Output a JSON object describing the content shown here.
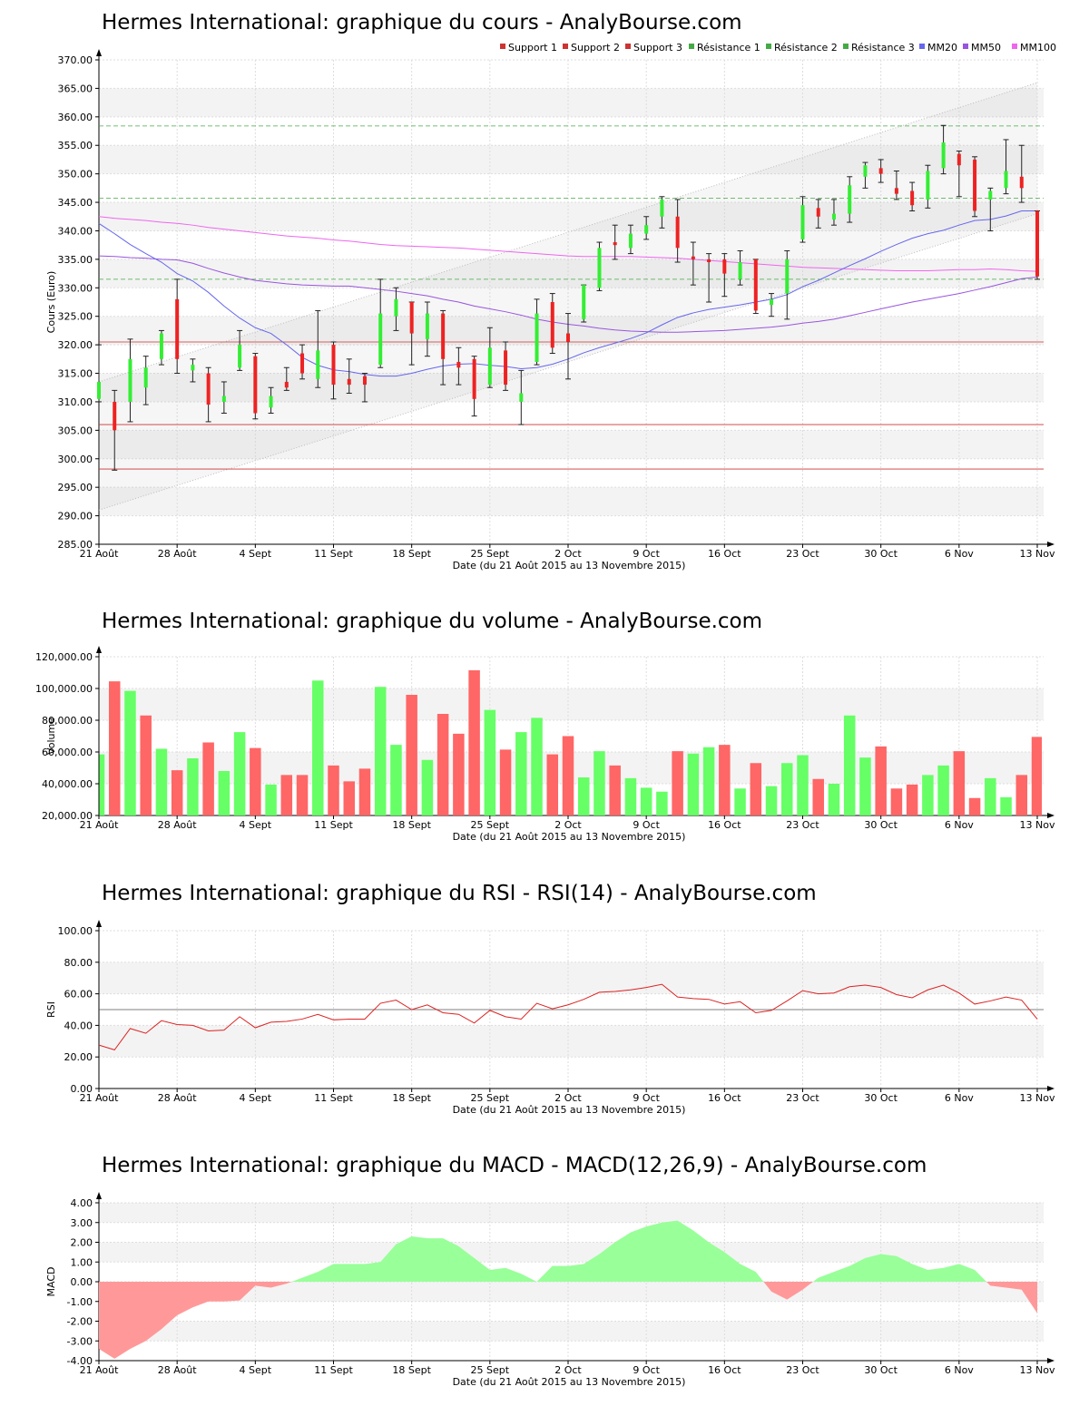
{
  "x_axis": {
    "ticks": [
      "21 Août",
      "28 Août",
      "4 Sept",
      "11 Sept",
      "18 Sept",
      "25 Sept",
      "2 Oct",
      "9 Oct",
      "16 Oct",
      "23 Oct",
      "30 Oct",
      "6 Nov",
      "13 Nov"
    ],
    "tick_positions": [
      0,
      5,
      10,
      15,
      20,
      25,
      30,
      35,
      40,
      45,
      50,
      55,
      60
    ],
    "label": "Date (du 21 Août 2015 au 13 Novembre 2015)"
  },
  "colors": {
    "up": "#33ee33",
    "down": "#ee2222",
    "vol_up": "#66ff66",
    "vol_down": "#ff6666",
    "mm20": "#6666ee",
    "mm50": "#9955dd",
    "mm100": "#ee66ee",
    "support": "#cc3333",
    "resistance": "#44aa44",
    "macd_pos": "#99ff99",
    "macd_neg": "#ff9999"
  },
  "chart_data": [
    {
      "type": "candlestick",
      "title": "Hermes International: graphique du cours - AnalyBourse.com",
      "ylabel": "Cours (Euro)",
      "ylim": [
        285,
        370
      ],
      "yticks": [
        "285.00",
        "290.00",
        "295.00",
        "300.00",
        "305.00",
        "310.00",
        "315.00",
        "320.00",
        "325.00",
        "330.00",
        "335.00",
        "340.00",
        "345.00",
        "350.00",
        "355.00",
        "360.00",
        "365.00",
        "370.00"
      ],
      "legend": [
        "Support 1",
        "Support 2",
        "Support 3",
        "Résistance 1",
        "Résistance 2",
        "Résistance 3",
        "MM20",
        "MM50",
        "MM100"
      ],
      "levels": {
        "support": [
          320.5,
          306.0,
          298.2
        ],
        "resistance": [
          331.5,
          345.7,
          358.4
        ]
      },
      "candles": [
        {
          "o": 310.5,
          "h": 320.0,
          "l": 310.0,
          "c": 313.5
        },
        {
          "o": 310.0,
          "h": 312.0,
          "l": 298.0,
          "c": 305.0
        },
        {
          "o": 310.0,
          "h": 321.0,
          "l": 306.5,
          "c": 317.5
        },
        {
          "o": 312.5,
          "h": 318.0,
          "l": 309.5,
          "c": 316.0
        },
        {
          "o": 317.5,
          "h": 322.5,
          "l": 316.5,
          "c": 322.0
        },
        {
          "o": 328.0,
          "h": 331.5,
          "l": 315.0,
          "c": 317.5
        },
        {
          "o": 315.5,
          "h": 317.5,
          "l": 313.5,
          "c": 316.5
        },
        {
          "o": 315.0,
          "h": 316.0,
          "l": 306.5,
          "c": 309.5
        },
        {
          "o": 310.0,
          "h": 313.5,
          "l": 308.0,
          "c": 311.0
        },
        {
          "o": 316.0,
          "h": 322.5,
          "l": 315.5,
          "c": 320.0
        },
        {
          "o": 318.0,
          "h": 318.5,
          "l": 307.0,
          "c": 308.0
        },
        {
          "o": 309.0,
          "h": 312.5,
          "l": 308.0,
          "c": 311.0
        },
        {
          "o": 313.5,
          "h": 316.0,
          "l": 312.0,
          "c": 312.5
        },
        {
          "o": 318.5,
          "h": 320.0,
          "l": 314.0,
          "c": 315.0
        },
        {
          "o": 314.0,
          "h": 326.0,
          "l": 312.5,
          "c": 319.0
        },
        {
          "o": 320.0,
          "h": 320.5,
          "l": 310.5,
          "c": 313.0
        },
        {
          "o": 314.0,
          "h": 317.5,
          "l": 311.5,
          "c": 313.0
        },
        {
          "o": 314.5,
          "h": 315.0,
          "l": 310.0,
          "c": 313.0
        },
        {
          "o": 316.5,
          "h": 331.5,
          "l": 316.0,
          "c": 325.5
        },
        {
          "o": 325.0,
          "h": 330.0,
          "l": 322.5,
          "c": 328.0
        },
        {
          "o": 327.5,
          "h": 327.5,
          "l": 316.5,
          "c": 322.0
        },
        {
          "o": 321.0,
          "h": 327.5,
          "l": 318.0,
          "c": 325.5
        },
        {
          "o": 325.5,
          "h": 326.0,
          "l": 313.0,
          "c": 317.5
        },
        {
          "o": 317.0,
          "h": 319.5,
          "l": 313.0,
          "c": 316.0
        },
        {
          "o": 317.5,
          "h": 318.0,
          "l": 307.5,
          "c": 310.5
        },
        {
          "o": 313.0,
          "h": 323.0,
          "l": 312.5,
          "c": 319.5
        },
        {
          "o": 319.0,
          "h": 320.5,
          "l": 312.0,
          "c": 313.0
        },
        {
          "o": 310.0,
          "h": 315.5,
          "l": 306.0,
          "c": 311.5
        },
        {
          "o": 317.0,
          "h": 328.0,
          "l": 316.5,
          "c": 325.5
        },
        {
          "o": 327.5,
          "h": 329.0,
          "l": 318.5,
          "c": 319.5
        },
        {
          "o": 322.0,
          "h": 325.5,
          "l": 314.0,
          "c": 320.5
        },
        {
          "o": 324.5,
          "h": 330.5,
          "l": 324.0,
          "c": 330.5
        },
        {
          "o": 330.0,
          "h": 338.0,
          "l": 329.5,
          "c": 337.0
        },
        {
          "o": 338.0,
          "h": 341.0,
          "l": 335.0,
          "c": 337.5
        },
        {
          "o": 337.0,
          "h": 341.0,
          "l": 336.0,
          "c": 339.5
        },
        {
          "o": 339.5,
          "h": 342.5,
          "l": 338.5,
          "c": 341.0
        },
        {
          "o": 342.5,
          "h": 346.0,
          "l": 340.5,
          "c": 345.5
        },
        {
          "o": 342.5,
          "h": 345.5,
          "l": 334.5,
          "c": 337.0
        },
        {
          "o": 335.5,
          "h": 338.0,
          "l": 330.5,
          "c": 335.0
        },
        {
          "o": 335.0,
          "h": 336.0,
          "l": 327.5,
          "c": 334.5
        },
        {
          "o": 335.0,
          "h": 336.0,
          "l": 328.5,
          "c": 332.5
        },
        {
          "o": 331.5,
          "h": 336.5,
          "l": 330.5,
          "c": 334.5
        },
        {
          "o": 335.0,
          "h": 335.0,
          "l": 325.5,
          "c": 326.0
        },
        {
          "o": 327.0,
          "h": 329.0,
          "l": 325.0,
          "c": 328.0
        },
        {
          "o": 329.0,
          "h": 336.5,
          "l": 324.5,
          "c": 335.0
        },
        {
          "o": 338.5,
          "h": 346.0,
          "l": 338.0,
          "c": 344.5
        },
        {
          "o": 344.0,
          "h": 345.5,
          "l": 340.5,
          "c": 342.5
        },
        {
          "o": 342.0,
          "h": 345.5,
          "l": 341.0,
          "c": 343.0
        },
        {
          "o": 343.0,
          "h": 349.5,
          "l": 341.5,
          "c": 348.0
        },
        {
          "o": 349.5,
          "h": 352.0,
          "l": 347.5,
          "c": 351.5
        },
        {
          "o": 351.0,
          "h": 352.5,
          "l": 348.5,
          "c": 350.0
        },
        {
          "o": 347.5,
          "h": 350.5,
          "l": 345.5,
          "c": 346.5
        },
        {
          "o": 347.0,
          "h": 348.5,
          "l": 343.5,
          "c": 344.5
        },
        {
          "o": 345.5,
          "h": 351.5,
          "l": 344.0,
          "c": 350.5
        },
        {
          "o": 351.0,
          "h": 358.5,
          "l": 350.0,
          "c": 355.5
        },
        {
          "o": 353.5,
          "h": 354.0,
          "l": 346.0,
          "c": 351.5
        },
        {
          "o": 352.5,
          "h": 353.0,
          "l": 342.5,
          "c": 343.5
        },
        {
          "o": 345.5,
          "h": 347.5,
          "l": 340.0,
          "c": 347.0
        },
        {
          "o": 347.5,
          "h": 356.0,
          "l": 346.5,
          "c": 350.5
        },
        {
          "o": 349.5,
          "h": 355.0,
          "l": 345.0,
          "c": 347.5
        },
        {
          "o": 343.5,
          "h": 343.5,
          "l": 331.5,
          "c": 332.0
        }
      ],
      "mm20": [
        341.3,
        339.5,
        337.6,
        336.0,
        334.5,
        332.5,
        331.2,
        329.2,
        326.8,
        324.7,
        323.0,
        322.0,
        320.0,
        317.8,
        316.4,
        315.6,
        315.3,
        314.8,
        314.5,
        314.5,
        315.0,
        315.7,
        316.3,
        316.6,
        316.7,
        316.4,
        316.2,
        315.8,
        316.0,
        316.6,
        317.5,
        318.6,
        319.5,
        320.3,
        321.1,
        322.1,
        323.5,
        324.8,
        325.6,
        326.2,
        326.6,
        327.0,
        327.5,
        328.0,
        328.8,
        330.2,
        331.3,
        332.6,
        333.9,
        335.1,
        336.4,
        337.6,
        338.7,
        339.5,
        340.1,
        341.0,
        341.8,
        342.0,
        342.6,
        343.5,
        343.5
      ],
      "mm50": [
        335.6,
        335.5,
        335.3,
        335.2,
        335.0,
        334.9,
        334.3,
        333.4,
        332.6,
        331.9,
        331.3,
        331.0,
        330.7,
        330.5,
        330.4,
        330.3,
        330.3,
        330.0,
        329.7,
        329.4,
        329.0,
        328.6,
        328.0,
        327.5,
        326.8,
        326.3,
        325.8,
        325.2,
        324.5,
        324.0,
        323.6,
        323.3,
        322.9,
        322.6,
        322.4,
        322.3,
        322.2,
        322.2,
        322.3,
        322.4,
        322.5,
        322.7,
        322.9,
        323.1,
        323.4,
        323.8,
        324.1,
        324.5,
        325.1,
        325.7,
        326.3,
        326.9,
        327.5,
        328.0,
        328.5,
        329.0,
        329.6,
        330.2,
        330.9,
        331.6,
        331.9
      ],
      "mm100": [
        342.5,
        342.2,
        342.0,
        341.8,
        341.5,
        341.3,
        341.0,
        340.6,
        340.3,
        340.0,
        339.7,
        339.4,
        339.1,
        338.9,
        338.7,
        338.4,
        338.2,
        337.9,
        337.6,
        337.4,
        337.3,
        337.2,
        337.1,
        337.0,
        336.8,
        336.6,
        336.4,
        336.2,
        336.0,
        335.8,
        335.6,
        335.5,
        335.5,
        335.5,
        335.5,
        335.4,
        335.3,
        335.2,
        335.0,
        334.8,
        334.6,
        334.4,
        334.2,
        334.0,
        333.8,
        333.6,
        333.5,
        333.4,
        333.3,
        333.2,
        333.1,
        333.0,
        333.0,
        333.0,
        333.1,
        333.2,
        333.2,
        333.3,
        333.2,
        333.0,
        332.9
      ],
      "channel": {
        "upper": [
          [
            0,
            313.5
          ],
          [
            60,
            366.0
          ]
        ],
        "lower": [
          [
            0,
            291.0
          ],
          [
            60,
            343.0
          ]
        ]
      }
    },
    {
      "type": "bar",
      "title": "Hermes International: graphique du volume - AnalyBourse.com",
      "ylabel": "Volume",
      "ylim": [
        20000,
        120000
      ],
      "yticks": [
        "20,000.00",
        "40,000.00",
        "60,000.00",
        "80,000.00",
        "100,000.00",
        "120,000.00"
      ],
      "values": [
        58500,
        104500,
        98500,
        83000,
        62000,
        48500,
        56000,
        66000,
        48000,
        72500,
        62500,
        39500,
        45500,
        45500,
        105000,
        51500,
        41500,
        49500,
        101000,
        64500,
        96000,
        55000,
        84000,
        71500,
        111500,
        86500,
        61500,
        72500,
        81500,
        58500,
        70000,
        44000,
        60500,
        51500,
        43500,
        37500,
        35000,
        60500,
        59000,
        63000,
        64500,
        37000,
        53000,
        38500,
        53000,
        58000,
        43000,
        40000,
        83000,
        56500,
        63500,
        37000,
        39500,
        45500,
        51500,
        60500,
        31000,
        43500,
        31500,
        45500,
        69500
      ],
      "up": [
        true,
        false,
        true,
        false,
        true,
        false,
        true,
        false,
        true,
        true,
        false,
        true,
        false,
        false,
        true,
        false,
        false,
        false,
        true,
        true,
        false,
        true,
        false,
        false,
        false,
        true,
        false,
        true,
        true,
        false,
        false,
        true,
        true,
        false,
        true,
        true,
        true,
        false,
        true,
        true,
        false,
        true,
        false,
        true,
        true,
        true,
        false,
        true,
        true,
        true,
        false,
        false,
        false,
        true,
        true,
        false,
        false,
        true,
        true,
        false,
        false
      ]
    },
    {
      "type": "line",
      "title": "Hermes International: graphique du RSI - RSI(14) - AnalyBourse.com",
      "ylabel": "RSI",
      "ylim": [
        0,
        100
      ],
      "yticks": [
        "0.00",
        "20.00",
        "40.00",
        "60.00",
        "80.00",
        "100.00"
      ],
      "ref_line": 50,
      "values": [
        27.5,
        24.5,
        38.0,
        35.0,
        43.0,
        40.5,
        40.0,
        36.5,
        37.0,
        45.5,
        38.5,
        42.0,
        42.5,
        44.0,
        47.0,
        43.5,
        44.0,
        44.0,
        54.0,
        56.0,
        50.0,
        53.0,
        48.0,
        47.0,
        41.5,
        49.5,
        45.5,
        44.0,
        54.0,
        50.5,
        53.0,
        56.5,
        61.0,
        61.5,
        62.5,
        64.0,
        66.0,
        58.0,
        57.0,
        56.5,
        53.5,
        55.0,
        48.0,
        49.5,
        55.5,
        62.0,
        60.0,
        60.5,
        64.5,
        65.5,
        64.0,
        59.5,
        57.5,
        62.5,
        65.5,
        60.5,
        53.5,
        55.5,
        58.0,
        56.0,
        44.0
      ]
    },
    {
      "type": "area",
      "title": "Hermes International: graphique du MACD - MACD(12,26,9) - AnalyBourse.com",
      "ylabel": "MACD",
      "ylim": [
        -4,
        4
      ],
      "yticks": [
        "-4.00",
        "-3.00",
        "-2.00",
        "-1.00",
        "0.00",
        "1.00",
        "2.00",
        "3.00",
        "4.00"
      ],
      "values": [
        -3.4,
        -3.9,
        -3.4,
        -3.0,
        -2.4,
        -1.7,
        -1.3,
        -1.0,
        -1.0,
        -0.95,
        -0.2,
        -0.3,
        -0.1,
        0.2,
        0.5,
        0.9,
        0.9,
        0.9,
        1.0,
        1.9,
        2.3,
        2.2,
        2.2,
        1.8,
        1.2,
        0.6,
        0.7,
        0.4,
        0.0,
        0.8,
        0.8,
        0.9,
        1.4,
        2.0,
        2.5,
        2.8,
        3.0,
        3.1,
        2.6,
        2.0,
        1.5,
        0.9,
        0.5,
        -0.5,
        -0.9,
        -0.4,
        0.2,
        0.5,
        0.8,
        1.2,
        1.4,
        1.3,
        0.9,
        0.6,
        0.7,
        0.9,
        0.6,
        -0.2,
        -0.3,
        -0.4,
        -1.6
      ]
    }
  ]
}
